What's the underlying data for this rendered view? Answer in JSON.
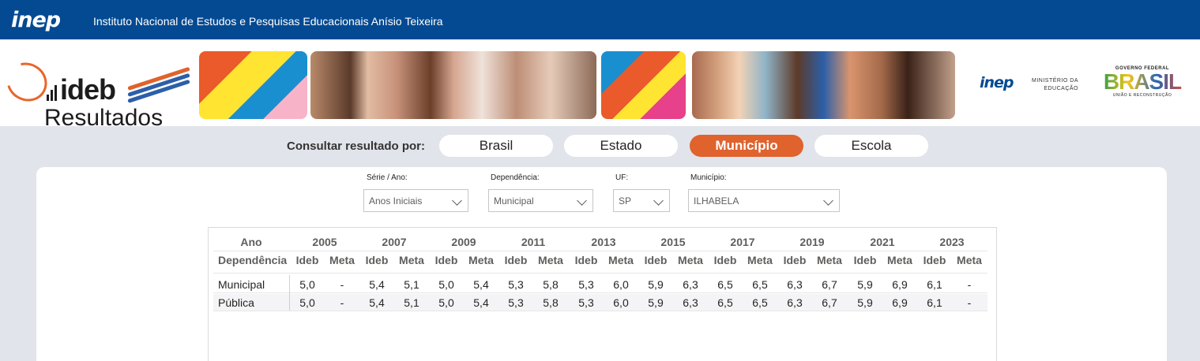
{
  "topbar": {
    "logo": "inep",
    "title": "Instituto Nacional de Estudos e Pesquisas Educacionais Anísio Teixeira"
  },
  "banner": {
    "brand": "ideb",
    "subtitle": "Resultados",
    "gov_inep": "inep",
    "ministerio_line1": "MINISTÉRIO DA",
    "ministerio_line2": "EDUCAÇÃO",
    "gov_federal": "GOVERNO FEDERAL",
    "brasil": "BRASIL",
    "uniao": "UNIÃO E RECONSTRUÇÃO"
  },
  "consult": {
    "label": "Consultar resultado por:",
    "options": [
      "Brasil",
      "Estado",
      "Município",
      "Escola"
    ],
    "selected": "Município"
  },
  "filters": {
    "serie": {
      "label": "Série / Ano:",
      "value": "Anos Iniciais"
    },
    "dependencia": {
      "label": "Dependência:",
      "value": "Municipal"
    },
    "uf": {
      "label": "UF:",
      "value": "SP"
    },
    "municipio": {
      "label": "Município:",
      "value": "ILHABELA"
    }
  },
  "table": {
    "year_header": "Ano",
    "dep_header": "Dependência",
    "ideb_header": "Ideb",
    "meta_header": "Meta",
    "years": [
      "2005",
      "2007",
      "2009",
      "2011",
      "2013",
      "2015",
      "2017",
      "2019",
      "2021",
      "2023"
    ],
    "rows": [
      {
        "label": "Municipal",
        "values": [
          "5,0",
          "-",
          "5,4",
          "5,1",
          "5,0",
          "5,4",
          "5,3",
          "5,8",
          "5,3",
          "6,0",
          "5,9",
          "6,3",
          "6,5",
          "6,5",
          "6,3",
          "6,7",
          "5,9",
          "6,9",
          "6,1",
          "-"
        ]
      },
      {
        "label": "Pública",
        "values": [
          "5,0",
          "-",
          "5,4",
          "5,1",
          "5,0",
          "5,4",
          "5,3",
          "5,8",
          "5,3",
          "6,0",
          "5,9",
          "6,3",
          "6,5",
          "6,5",
          "6,3",
          "6,7",
          "5,9",
          "6,9",
          "6,1",
          "-"
        ]
      }
    ]
  },
  "colors": {
    "topbar": "#044a92",
    "accent": "#e0622d",
    "background": "#e1e4ea"
  }
}
